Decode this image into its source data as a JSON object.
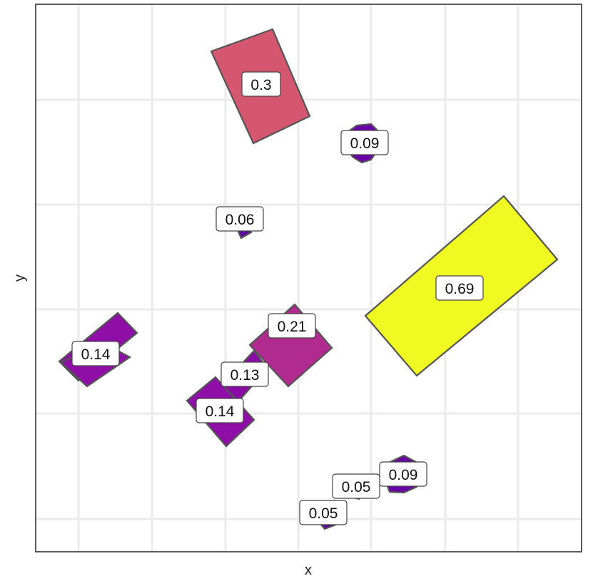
{
  "chart_data": {
    "type": "scatter",
    "title": "",
    "xlabel": "x",
    "ylabel": "y",
    "grid": true,
    "legend": "none",
    "colors": {
      "0.05": "#5a0a9e",
      "0.06": "#5c0aa0",
      "0.09": "#6a00a8",
      "0.13": "#8a0aa6",
      "0.14": "#8e0ea7",
      "0.21": "#b12a90",
      "0.3": "#d4566f",
      "0.69": "#f0f921"
    },
    "points": [
      {
        "label": "0.3"
      },
      {
        "label": "0.09"
      },
      {
        "label": "0.06"
      },
      {
        "label": "0.69"
      },
      {
        "label": "0.21"
      },
      {
        "label": "0.14"
      },
      {
        "label": "0.13"
      },
      {
        "label": "0.14"
      },
      {
        "label": "0.09"
      },
      {
        "label": "0.05"
      },
      {
        "label": "0.05"
      }
    ]
  }
}
